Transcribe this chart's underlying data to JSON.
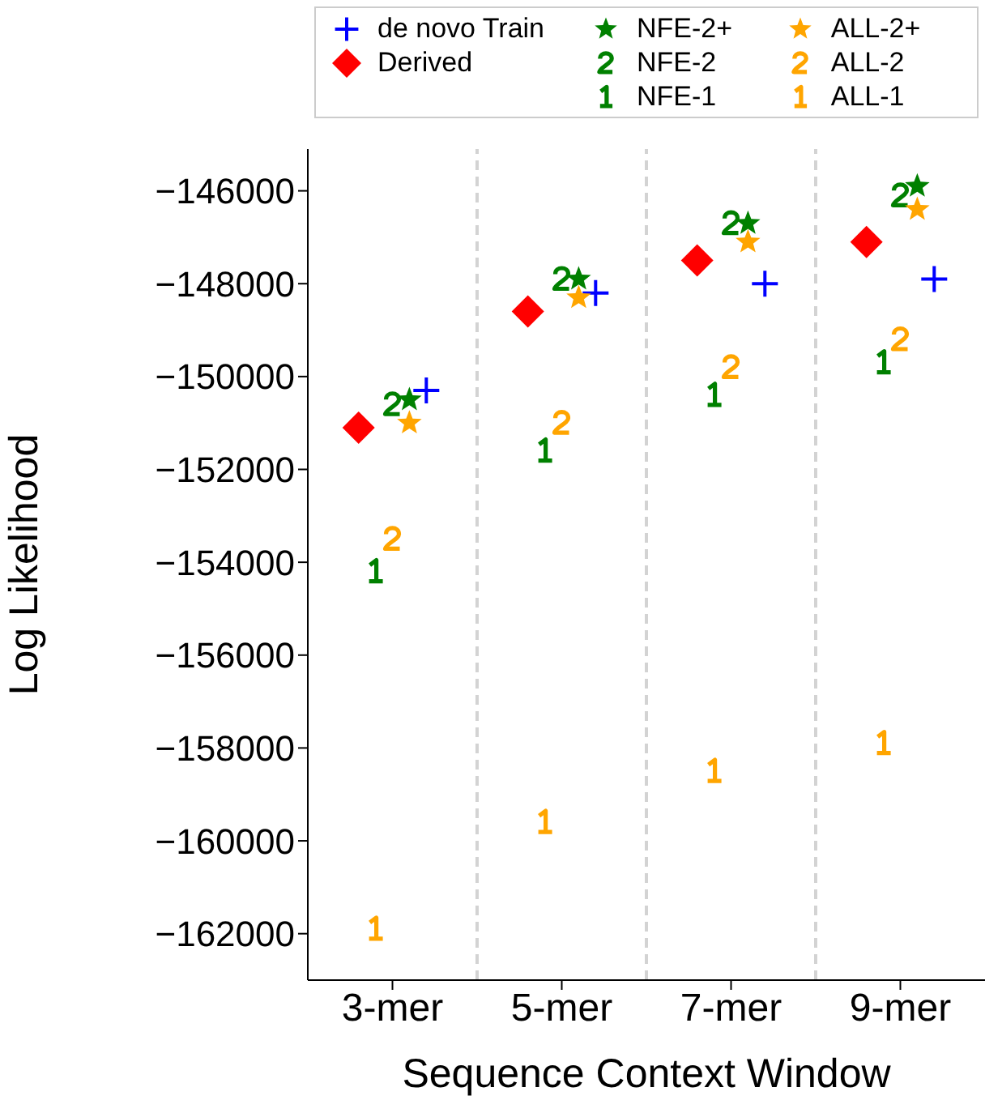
{
  "chart_data": {
    "type": "scatter",
    "xlabel": "Sequence Context Window",
    "ylabel": "Log Likelihood",
    "categories": [
      "3-mer",
      "5-mer",
      "7-mer",
      "9-mer"
    ],
    "ylim": [
      -163000,
      -145100
    ],
    "yticks": [
      -162000,
      -160000,
      -158000,
      -156000,
      -154000,
      -152000,
      -150000,
      -148000,
      -146000
    ],
    "grid": false,
    "legend": "top",
    "series": [
      {
        "name": "de novo Train",
        "color": "#0000ff",
        "marker": "plus",
        "values": [
          -150300,
          -148200,
          -148000,
          -147900
        ]
      },
      {
        "name": "Derived",
        "color": "#ff0000",
        "marker": "diamond",
        "values": [
          -151100,
          -148600,
          -147500,
          -147100
        ]
      },
      {
        "name": "NFE-2+",
        "color": "#008000",
        "marker": "star",
        "values": [
          -150500,
          -147900,
          -146700,
          -145900
        ]
      },
      {
        "name": "NFE-2",
        "color": "#008000",
        "values": [
          -150600,
          -147900,
          -146700,
          -146100
        ]
      },
      {
        "name": "NFE-1",
        "color": "#008000",
        "values": [
          -154200,
          -151600,
          -150400,
          -149700
        ]
      },
      {
        "name": "ALL-2+",
        "color": "#ffa500",
        "marker": "star",
        "values": [
          -151000,
          -148300,
          -147100,
          -146400
        ]
      },
      {
        "name": "ALL-2",
        "color": "#ffa500",
        "values": [
          -153500,
          -151000,
          -149800,
          -149200
        ]
      },
      {
        "name": "ALL-1",
        "color": "#ffa500",
        "values": [
          -161900,
          -159600,
          -158500,
          -157900
        ]
      }
    ]
  }
}
